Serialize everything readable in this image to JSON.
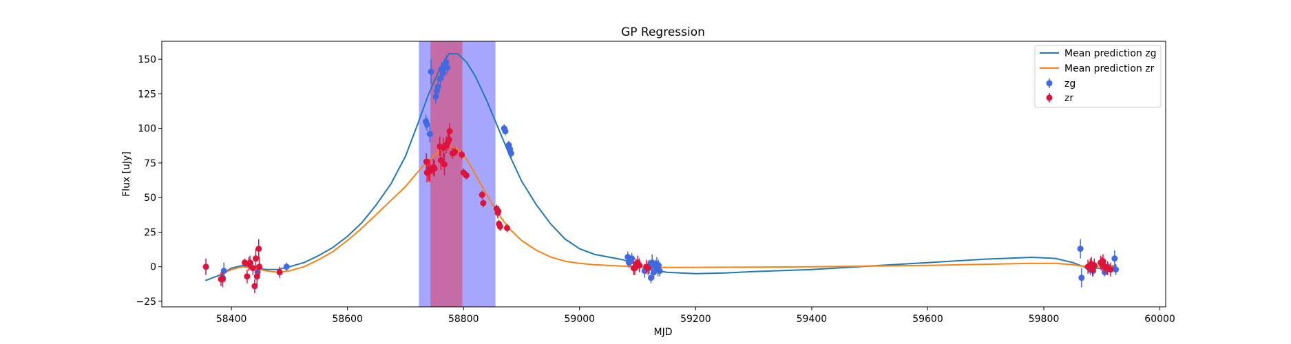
{
  "chart_data": {
    "type": "scatter",
    "title": "GP Regression",
    "xlabel": "MJD",
    "ylabel": "Flux [uJy]",
    "xlim": [
      58280,
      60010
    ],
    "ylim": [
      -29,
      163
    ],
    "xticks": [
      58400,
      58600,
      58800,
      59000,
      59200,
      59400,
      59600,
      59800,
      60000
    ],
    "yticks": [
      -25,
      0,
      25,
      50,
      75,
      100,
      125,
      150
    ],
    "legend_position": "top-right",
    "colors": {
      "line_zg": "#1f77b4",
      "line_zr": "#ff7f0e",
      "points_zg": "#4169e1",
      "points_zr": "#dc143c",
      "span_outer": "#0000ff",
      "span_inner": "#ff0000"
    },
    "spans": [
      {
        "x0": 58723,
        "x1": 58855,
        "color": "#0000ff",
        "alpha": 0.35
      },
      {
        "x0": 58743,
        "x1": 58798,
        "color": "#ff0000",
        "alpha": 0.35
      }
    ],
    "lines": [
      {
        "name": "Mean prediction zg",
        "color": "#1f77b4",
        "points": [
          [
            58355,
            -10
          ],
          [
            58380,
            -6
          ],
          [
            58400,
            -1
          ],
          [
            58420,
            1
          ],
          [
            58440,
            -1
          ],
          [
            58460,
            -2
          ],
          [
            58480,
            -2
          ],
          [
            58500,
            0
          ],
          [
            58525,
            3
          ],
          [
            58550,
            8
          ],
          [
            58575,
            14
          ],
          [
            58600,
            22
          ],
          [
            58625,
            32
          ],
          [
            58650,
            45
          ],
          [
            58675,
            60
          ],
          [
            58700,
            80
          ],
          [
            58720,
            102
          ],
          [
            58740,
            125
          ],
          [
            58760,
            144
          ],
          [
            58775,
            154
          ],
          [
            58790,
            154
          ],
          [
            58805,
            148
          ],
          [
            58820,
            138
          ],
          [
            58840,
            120
          ],
          [
            58860,
            100
          ],
          [
            58880,
            80
          ],
          [
            58900,
            62
          ],
          [
            58925,
            45
          ],
          [
            58950,
            31
          ],
          [
            58975,
            20
          ],
          [
            59000,
            13
          ],
          [
            59025,
            9
          ],
          [
            59050,
            7
          ],
          [
            59075,
            5
          ],
          [
            59090,
            3
          ],
          [
            59100,
            1
          ],
          [
            59120,
            -2
          ],
          [
            59150,
            -4
          ],
          [
            59200,
            -5
          ],
          [
            59250,
            -4.5
          ],
          [
            59300,
            -3.5
          ],
          [
            59400,
            -2
          ],
          [
            59500,
            0.5
          ],
          [
            59600,
            3
          ],
          [
            59700,
            5.5
          ],
          [
            59780,
            6.8
          ],
          [
            59820,
            6
          ],
          [
            59850,
            3
          ],
          [
            59875,
            -1
          ],
          [
            59900,
            -1
          ],
          [
            59925,
            0
          ]
        ]
      },
      {
        "name": "Mean prediction zr",
        "color": "#ff7f0e",
        "points": [
          [
            58380,
            -6
          ],
          [
            58400,
            -2
          ],
          [
            58420,
            0
          ],
          [
            58440,
            -1
          ],
          [
            58460,
            -3
          ],
          [
            58480,
            -4
          ],
          [
            58500,
            -3
          ],
          [
            58525,
            0
          ],
          [
            58550,
            5
          ],
          [
            58575,
            11
          ],
          [
            58600,
            19
          ],
          [
            58625,
            28
          ],
          [
            58650,
            38
          ],
          [
            58675,
            48
          ],
          [
            58700,
            58
          ],
          [
            58720,
            68
          ],
          [
            58740,
            77
          ],
          [
            58760,
            84
          ],
          [
            58775,
            87
          ],
          [
            58790,
            85
          ],
          [
            58805,
            78
          ],
          [
            58820,
            67
          ],
          [
            58840,
            52
          ],
          [
            58860,
            38
          ],
          [
            58880,
            27
          ],
          [
            58900,
            19
          ],
          [
            58925,
            12
          ],
          [
            58950,
            7
          ],
          [
            58975,
            4
          ],
          [
            59000,
            2.5
          ],
          [
            59025,
            1.5
          ],
          [
            59050,
            1
          ],
          [
            59100,
            0
          ],
          [
            59150,
            -0.5
          ],
          [
            59200,
            -0.5
          ],
          [
            59300,
            -0.3
          ],
          [
            59400,
            0
          ],
          [
            59500,
            0.5
          ],
          [
            59600,
            1
          ],
          [
            59700,
            1.8
          ],
          [
            59780,
            2.5
          ],
          [
            59820,
            2.5
          ],
          [
            59850,
            1.5
          ],
          [
            59875,
            0
          ],
          [
            59900,
            0.5
          ],
          [
            59925,
            1
          ]
        ]
      }
    ],
    "series": [
      {
        "name": "zg",
        "color": "#4169e1",
        "points": [
          [
            58385,
            -8,
            7
          ],
          [
            58387,
            -3,
            6
          ],
          [
            58445,
            -4,
            4
          ],
          [
            58495,
            0,
            3
          ],
          [
            58735,
            105,
            5
          ],
          [
            58737,
            103,
            5
          ],
          [
            58742,
            96,
            6
          ],
          [
            58744,
            141,
            9
          ],
          [
            58752,
            123,
            5
          ],
          [
            58754,
            127,
            5
          ],
          [
            58756,
            130,
            5
          ],
          [
            58760,
            136,
            5
          ],
          [
            58762,
            143,
            5
          ],
          [
            58765,
            140,
            5
          ],
          [
            58768,
            146,
            5
          ],
          [
            58770,
            148,
            5
          ],
          [
            58772,
            144,
            5
          ],
          [
            58870,
            100,
            3
          ],
          [
            58872,
            98,
            3
          ],
          [
            58878,
            88,
            3
          ],
          [
            58880,
            85,
            3
          ],
          [
            58882,
            82,
            3
          ],
          [
            59083,
            7,
            4
          ],
          [
            59085,
            3,
            4
          ],
          [
            59088,
            4,
            4
          ],
          [
            59090,
            6,
            4
          ],
          [
            59097,
            2,
            4
          ],
          [
            59112,
            -3,
            5
          ],
          [
            59120,
            0,
            5
          ],
          [
            59123,
            -8,
            4
          ],
          [
            59125,
            3,
            6
          ],
          [
            59128,
            -4,
            5
          ],
          [
            59131,
            0,
            5
          ],
          [
            59133,
            2,
            5
          ],
          [
            59135,
            -2,
            5
          ],
          [
            59136,
            1,
            4
          ],
          [
            59138,
            -3,
            4
          ],
          [
            59863,
            13,
            7
          ],
          [
            59865,
            -8,
            7
          ],
          [
            59880,
            -2,
            4
          ],
          [
            59885,
            -3,
            4
          ],
          [
            59903,
            1,
            4
          ],
          [
            59905,
            -4,
            3
          ],
          [
            59910,
            0,
            3
          ],
          [
            59922,
            6,
            6
          ],
          [
            59924,
            -2,
            4
          ]
        ]
      },
      {
        "name": "zr",
        "color": "#dc143c",
        "points": [
          [
            58356,
            0,
            6
          ],
          [
            58382,
            -9,
            5
          ],
          [
            58385,
            -9,
            5
          ],
          [
            58423,
            3,
            3
          ],
          [
            58427,
            -7,
            5
          ],
          [
            58430,
            2,
            5
          ],
          [
            58432,
            3,
            5
          ],
          [
            58437,
            -1,
            5
          ],
          [
            58440,
            -14,
            5
          ],
          [
            58442,
            6,
            7
          ],
          [
            58444,
            -7,
            7
          ],
          [
            58447,
            13,
            7
          ],
          [
            58448,
            0,
            7
          ],
          [
            58483,
            -4,
            4
          ],
          [
            58736,
            76,
            6
          ],
          [
            58737,
            68,
            7
          ],
          [
            58740,
            70,
            8
          ],
          [
            58742,
            69,
            8
          ],
          [
            58748,
            72,
            6
          ],
          [
            58750,
            71,
            6
          ],
          [
            58759,
            87,
            7
          ],
          [
            58761,
            77,
            7
          ],
          [
            58765,
            86,
            7
          ],
          [
            58767,
            74,
            8
          ],
          [
            58770,
            88,
            6
          ],
          [
            58773,
            90,
            6
          ],
          [
            58775,
            92,
            6
          ],
          [
            58776,
            98,
            6
          ],
          [
            58781,
            82,
            4
          ],
          [
            58785,
            83,
            3
          ],
          [
            58797,
            81,
            3
          ],
          [
            58800,
            68,
            3
          ],
          [
            58805,
            66,
            3
          ],
          [
            58832,
            52,
            3
          ],
          [
            58834,
            46,
            3
          ],
          [
            58857,
            42,
            3
          ],
          [
            58859,
            39,
            4
          ],
          [
            58860,
            40,
            3
          ],
          [
            58861,
            31,
            3
          ],
          [
            58863,
            29,
            3
          ],
          [
            58875,
            28,
            3
          ],
          [
            59093,
            -1,
            5
          ],
          [
            59095,
            -1,
            5
          ],
          [
            59100,
            3,
            5
          ],
          [
            59103,
            1,
            5
          ],
          [
            59115,
            0,
            5
          ],
          [
            59118,
            -1,
            5
          ],
          [
            59876,
            0,
            5
          ],
          [
            59880,
            1,
            5
          ],
          [
            59882,
            2,
            5
          ],
          [
            59884,
            -2,
            5
          ],
          [
            59887,
            1,
            5
          ],
          [
            59898,
            3,
            5
          ],
          [
            59900,
            2,
            5
          ],
          [
            59902,
            4,
            5
          ],
          [
            59905,
            0,
            5
          ],
          [
            59910,
            -1,
            5
          ],
          [
            59915,
            -2,
            5
          ]
        ]
      }
    ]
  }
}
